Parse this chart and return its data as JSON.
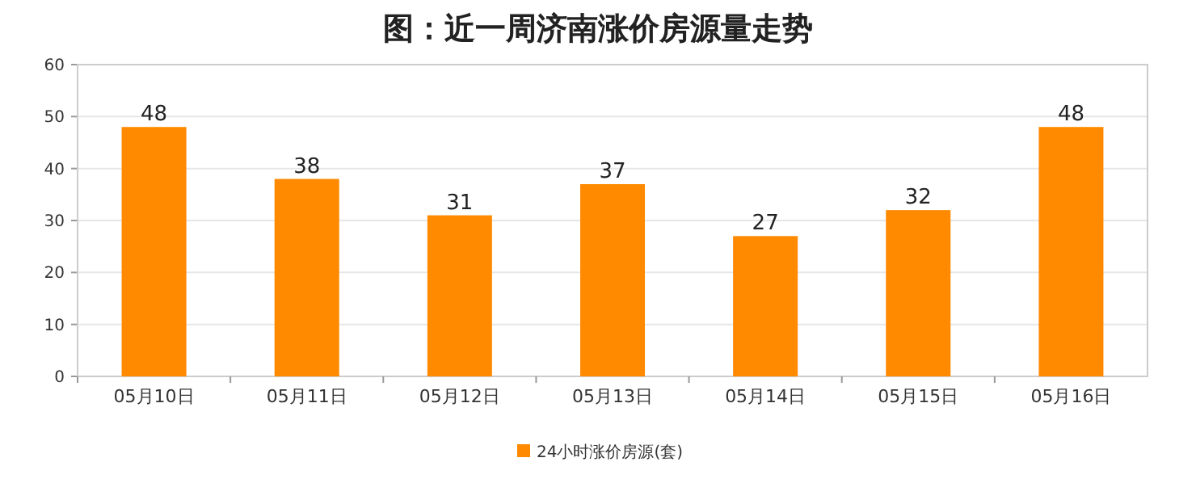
{
  "chart_data": {
    "type": "bar",
    "title": "图：近一周济南涨价房源量走势",
    "categories": [
      "05月10日",
      "05月11日",
      "05月12日",
      "05月13日",
      "05月14日",
      "05月15日",
      "05月16日"
    ],
    "series": [
      {
        "name": "24小时涨价房源(套)",
        "color": "#ff8a00",
        "values": [
          48,
          38,
          31,
          37,
          27,
          32,
          48
        ]
      }
    ],
    "ylim": [
      0,
      60
    ],
    "yticks": [
      0,
      10,
      20,
      30,
      40,
      50,
      60
    ],
    "grid": "y",
    "legend": "bottom",
    "data_labels": true
  }
}
